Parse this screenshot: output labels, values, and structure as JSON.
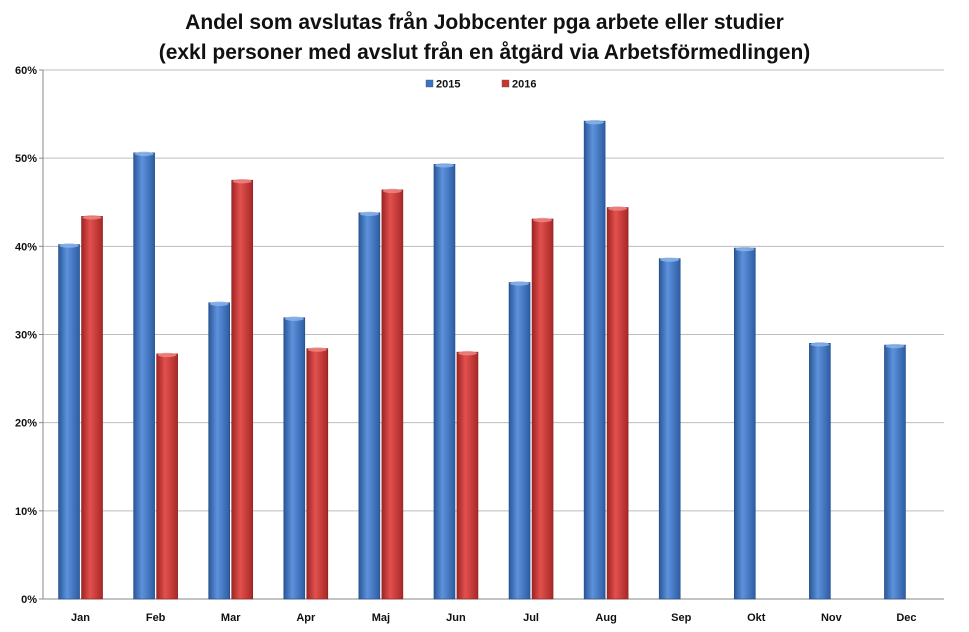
{
  "chart_data": {
    "type": "bar",
    "title_line1": "Andel som avslutas från Jobbcenter pga arbete eller studier",
    "title_line2": "(exkl personer med avslut från en åtgärd via Arbetsförmedlingen)",
    "xlabel": "",
    "ylabel": "",
    "ylim": [
      0,
      60
    ],
    "yticks": [
      "0%",
      "10%",
      "20%",
      "30%",
      "40%",
      "50%",
      "60%"
    ],
    "grid": true,
    "legend_position": "top-center",
    "categories": [
      "Jan",
      "Feb",
      "Mar",
      "Apr",
      "Maj",
      "Jun",
      "Jul",
      "Aug",
      "Sep",
      "Okt",
      "Nov",
      "Dec"
    ],
    "series": [
      {
        "name": "2015",
        "color": "#3a72c4",
        "values": [
          40.2,
          50.6,
          33.6,
          31.9,
          43.8,
          49.3,
          35.9,
          54.2,
          38.6,
          39.8,
          29.0,
          28.8
        ]
      },
      {
        "name": "2016",
        "color": "#cc3331",
        "values": [
          43.4,
          27.8,
          47.5,
          28.4,
          46.4,
          28.0,
          43.1,
          44.4,
          null,
          null,
          null,
          null
        ]
      }
    ]
  }
}
